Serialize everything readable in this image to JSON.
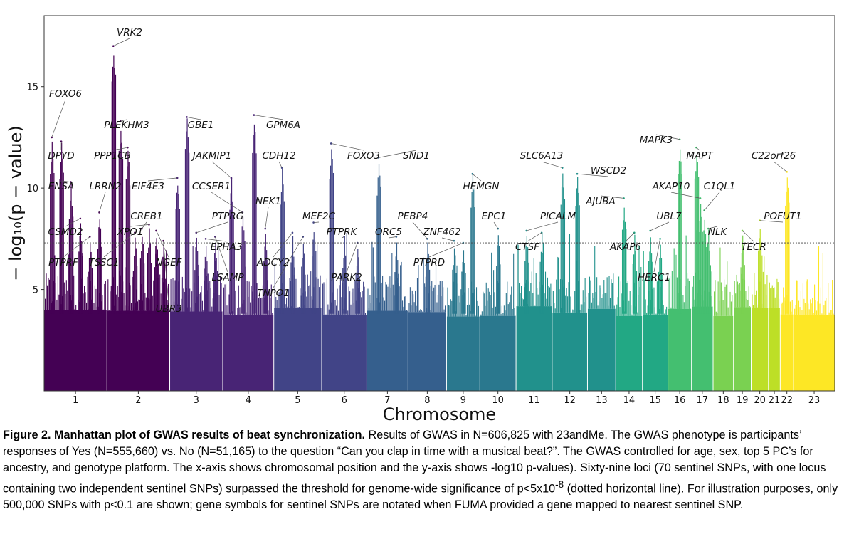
{
  "chart_data": {
    "type": "scatter",
    "subtype": "manhattan",
    "xlabel": "Chromosome",
    "ylabel": "− log₁₀(p − value)",
    "ylim": [
      0,
      18.5
    ],
    "yticks": [
      5,
      10,
      15
    ],
    "threshold": {
      "value": 7.3,
      "style": "dotted"
    },
    "grid": false,
    "colormap": "viridis",
    "colors": [
      "#440154",
      "#482475",
      "#414487",
      "#355f8d",
      "#2a788e",
      "#21918c",
      "#22a884",
      "#44bf70",
      "#7ad151",
      "#bddf26",
      "#fde725"
    ],
    "chromosomes": [
      "1",
      "2",
      "3",
      "4",
      "5",
      "6",
      "7",
      "8",
      "9",
      "10",
      "11",
      "12",
      "13",
      "14",
      "15",
      "16",
      "17",
      "18",
      "19",
      "20",
      "21",
      "22",
      "23"
    ],
    "lead_snps": [
      {
        "gene": "VRK2",
        "chrom": "2",
        "p": 17.0
      },
      {
        "gene": "FOXO6",
        "chrom": "1",
        "p": 12.5
      },
      {
        "gene": "DPYD",
        "chrom": "1",
        "p": 12.3
      },
      {
        "gene": "ENSA",
        "chrom": "1",
        "p": 10.3
      },
      {
        "gene": "CSMD2",
        "chrom": "1",
        "p": 8.5
      },
      {
        "gene": "PTPRF",
        "chrom": "1",
        "p": 7.6
      },
      {
        "gene": "PLEKHM3",
        "chrom": "2",
        "p": 13.3
      },
      {
        "gene": "PPP1CB",
        "chrom": "2",
        "p": 12.0
      },
      {
        "gene": "LRRN2",
        "chrom": "1",
        "p": 8.8
      },
      {
        "gene": "TSSC1",
        "chrom": "2",
        "p": 7.8
      },
      {
        "gene": "EIF4E3",
        "chrom": "3",
        "p": 10.5
      },
      {
        "gene": "CREB1",
        "chrom": "2",
        "p": 8.0
      },
      {
        "gene": "XPO1",
        "chrom": "2",
        "p": 8.2
      },
      {
        "gene": "NGEF",
        "chrom": "2",
        "p": 7.9
      },
      {
        "gene": "UBR3",
        "chrom": "2",
        "p": 7.4
      },
      {
        "gene": "GBE1",
        "chrom": "3",
        "p": 13.5
      },
      {
        "gene": "JAKMIP1",
        "chrom": "4",
        "p": 10.5
      },
      {
        "gene": "CCSER1",
        "chrom": "4",
        "p": 8.8
      },
      {
        "gene": "PTPRG",
        "chrom": "3",
        "p": 7.8
      },
      {
        "gene": "EPHA3",
        "chrom": "3",
        "p": 7.5
      },
      {
        "gene": "LSAMP",
        "chrom": "3",
        "p": 7.6
      },
      {
        "gene": "GPM6A",
        "chrom": "4",
        "p": 13.6
      },
      {
        "gene": "CDH12",
        "chrom": "5",
        "p": 11.0
      },
      {
        "gene": "NEK1",
        "chrom": "4",
        "p": 8.0
      },
      {
        "gene": "ADCY2",
        "chrom": "5",
        "p": 7.8
      },
      {
        "gene": "TNPO1",
        "chrom": "5",
        "p": 7.6
      },
      {
        "gene": "MEF2C",
        "chrom": "5",
        "p": 8.3
      },
      {
        "gene": "FOXO3",
        "chrom": "6",
        "p": 12.2
      },
      {
        "gene": "PTPRK",
        "chrom": "6",
        "p": 7.6
      },
      {
        "gene": "PARK2",
        "chrom": "6",
        "p": 7.3
      },
      {
        "gene": "SND1",
        "chrom": "7",
        "p": 11.5
      },
      {
        "gene": "PEBP4",
        "chrom": "8",
        "p": 7.5
      },
      {
        "gene": "ORC5",
        "chrom": "7",
        "p": 7.6
      },
      {
        "gene": "ZNF462",
        "chrom": "9",
        "p": 7.4
      },
      {
        "gene": "PTPRD",
        "chrom": "9",
        "p": 7.3
      },
      {
        "gene": "HEMGN",
        "chrom": "9",
        "p": 10.7
      },
      {
        "gene": "EPC1",
        "chrom": "10",
        "p": 8.0
      },
      {
        "gene": "SLC6A13",
        "chrom": "12",
        "p": 11.0
      },
      {
        "gene": "PICALM",
        "chrom": "11",
        "p": 7.9
      },
      {
        "gene": "CTSF",
        "chrom": "11",
        "p": 7.8
      },
      {
        "gene": "WSCD2",
        "chrom": "12",
        "p": 10.7
      },
      {
        "gene": "AJUBA",
        "chrom": "14",
        "p": 9.5
      },
      {
        "gene": "AKAP6",
        "chrom": "14",
        "p": 7.8
      },
      {
        "gene": "MAPK3",
        "chrom": "16",
        "p": 12.4
      },
      {
        "gene": "MAPT",
        "chrom": "17",
        "p": 12.0
      },
      {
        "gene": "AKAP10",
        "chrom": "17",
        "p": 9.5
      },
      {
        "gene": "C1QL1",
        "chrom": "17",
        "p": 8.9
      },
      {
        "gene": "UBL7",
        "chrom": "15",
        "p": 7.9
      },
      {
        "gene": "HERC1",
        "chrom": "15",
        "p": 7.5
      },
      {
        "gene": "NLK",
        "chrom": "17",
        "p": 8.0
      },
      {
        "gene": "C22orf26",
        "chrom": "22",
        "p": 10.8
      },
      {
        "gene": "POFUT1",
        "chrom": "20",
        "p": 8.4
      },
      {
        "gene": "TECR",
        "chrom": "19",
        "p": 7.9
      }
    ]
  },
  "caption": {
    "lead": "Figure 2. Manhattan plot of GWAS results of beat synchronization.",
    "body_before_sup": " Results of GWAS in N=606,825 with 23andMe. The GWAS phenotype is participants’ responses of Yes (N=555,660) vs. No (N=51,165) to the question “Can you clap in time with a musical beat?”. The GWAS controlled for age, sex, top 5 PC’s for ancestry, and genotype platform. The x-axis shows chromosomal position and the y-axis shows -log10 p-values). Sixty-nine loci (70 sentinel SNPs, with one locus containing two independent sentinel SNPs) surpassed the threshold for genome-wide significance of p<5x10",
    "sup": "-8",
    "body_after_sup": " (dotted horizontal line). For illustration purposes, only 500,000 SNPs with p<0.1 are shown; gene symbols for sentinel SNPs are notated when FUMA provided a gene mapped to nearest sentinel SNP."
  }
}
